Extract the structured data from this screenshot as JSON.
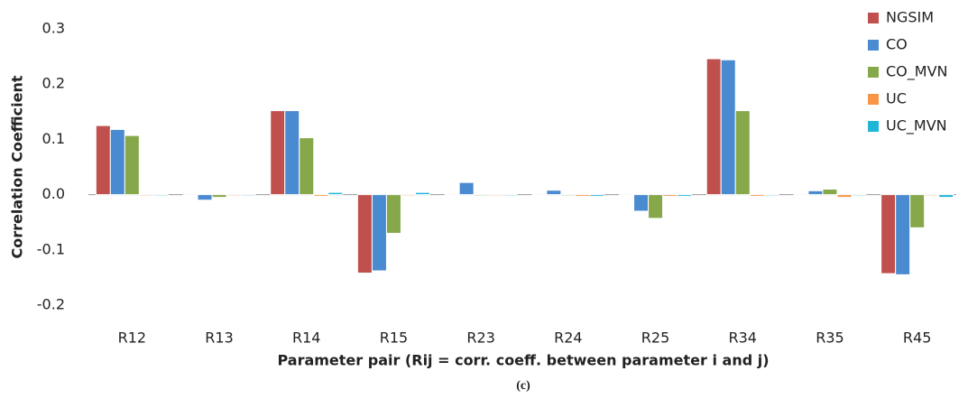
{
  "chart_data": {
    "type": "bar",
    "y_label": "Correlation Coefficient",
    "x_label": "Parameter pair (Rij = corr. coeff. between parameter i and j)",
    "caption": "(c)",
    "categories": [
      "R12",
      "R13",
      "R14",
      "R15",
      "R23",
      "R24",
      "R25",
      "R34",
      "R35",
      "R45"
    ],
    "series": [
      {
        "name": "NGSIM",
        "color": "#c0504d",
        "values": [
          0.125,
          0,
          0.152,
          -0.142,
          0,
          0,
          0,
          0.246,
          0,
          -0.143
        ]
      },
      {
        "name": "CO",
        "color": "#4a8ad0",
        "values": [
          0.118,
          -0.01,
          0.152,
          -0.138,
          0.022,
          0.008,
          -0.03,
          0.244,
          0.007,
          -0.145
        ]
      },
      {
        "name": "CO_MVN",
        "color": "#86a84a",
        "values": [
          0.107,
          -0.005,
          0.103,
          -0.07,
          -0.002,
          -0.002,
          -0.043,
          0.152,
          0.01,
          -0.06
        ]
      },
      {
        "name": "UC",
        "color": "#f79646",
        "values": [
          -0.002,
          -0.002,
          -0.003,
          -0.002,
          -0.002,
          -0.003,
          -0.003,
          -0.003,
          -0.005,
          -0.002
        ]
      },
      {
        "name": "UC_MVN",
        "color": "#1fb6d8",
        "values": [
          -0.002,
          -0.002,
          0.004,
          0.004,
          -0.002,
          -0.003,
          -0.003,
          -0.002,
          -0.002,
          -0.005
        ]
      }
    ],
    "ylim": [
      -0.2,
      0.3
    ],
    "yticks": [
      -0.2,
      -0.1,
      {
        "value": 0,
        "label": "0.0"
      },
      0.1,
      0.2,
      0.3
    ],
    "grid": false,
    "legend": "top-right"
  }
}
